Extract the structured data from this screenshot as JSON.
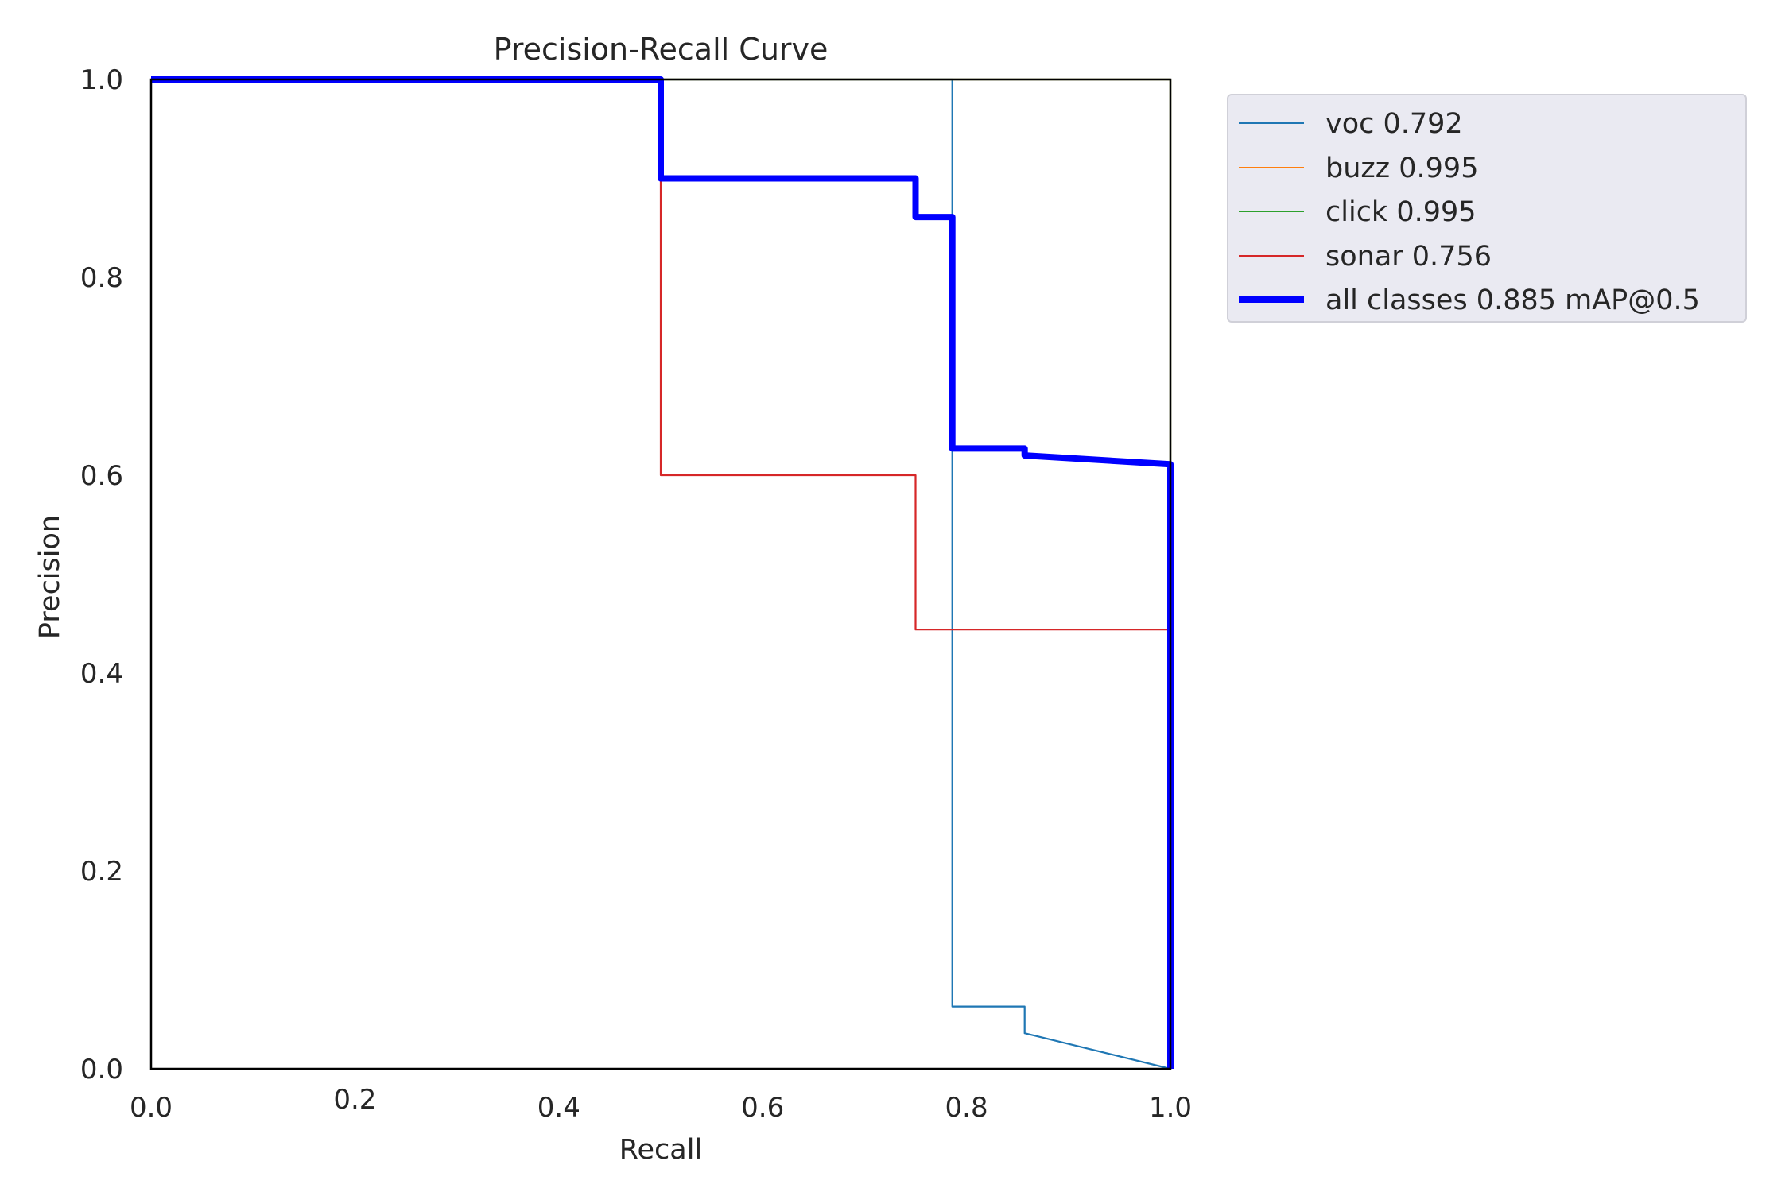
{
  "chart_data": {
    "type": "line",
    "title": "Precision-Recall Curve",
    "xlabel": "Recall",
    "ylabel": "Precision",
    "xlim": [
      0.0,
      1.0
    ],
    "ylim": [
      0.0,
      1.0
    ],
    "xticks": [
      "0.0",
      "0.2",
      "0.4",
      "0.6",
      "0.8",
      "1.0"
    ],
    "yticks": [
      "0.0",
      "0.2",
      "0.4",
      "0.6",
      "0.8",
      "1.0"
    ],
    "grid": false,
    "legend_position": "outside-right-top",
    "series": [
      {
        "name": "voc 0.792",
        "color": "#1f77b4",
        "x": [
          0.0,
          0.786,
          0.786,
          0.786,
          0.857,
          0.857,
          1.0
        ],
        "y": [
          1.0,
          1.0,
          0.063,
          0.063,
          0.063,
          0.036,
          0.0
        ]
      },
      {
        "name": "buzz 0.995",
        "color": "#ff7f0e",
        "x": [
          0.0,
          1.0,
          1.0
        ],
        "y": [
          1.0,
          1.0,
          0.0
        ]
      },
      {
        "name": "click 0.995",
        "color": "#2ca02c",
        "x": [
          0.0,
          1.0,
          1.0
        ],
        "y": [
          1.0,
          1.0,
          0.0
        ]
      },
      {
        "name": "sonar 0.756",
        "color": "#d62728",
        "x": [
          0.0,
          0.5,
          0.5,
          0.75,
          0.75,
          1.0,
          1.0
        ],
        "y": [
          1.0,
          1.0,
          0.6,
          0.6,
          0.444,
          0.444,
          0.0
        ]
      },
      {
        "name": "all classes 0.885 mAP@0.5",
        "color": "#0000ff",
        "emphasis": true,
        "x": [
          0.0,
          0.5,
          0.5,
          0.75,
          0.75,
          0.786,
          0.786,
          0.857,
          0.857,
          1.0,
          1.0
        ],
        "y": [
          1.0,
          1.0,
          0.9,
          0.9,
          0.861,
          0.861,
          0.627,
          0.627,
          0.62,
          0.611,
          0.0
        ]
      }
    ]
  }
}
